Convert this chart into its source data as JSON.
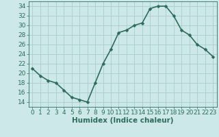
{
  "x": [
    0,
    1,
    2,
    3,
    4,
    5,
    6,
    7,
    8,
    9,
    10,
    11,
    12,
    13,
    14,
    15,
    16,
    17,
    18,
    19,
    20,
    21,
    22,
    23
  ],
  "y": [
    21,
    19.5,
    18.5,
    18,
    16.5,
    15,
    14.5,
    14,
    18,
    22,
    25,
    28.5,
    29,
    30,
    30.5,
    33.5,
    34,
    34,
    32,
    29,
    28,
    26,
    25,
    23.5
  ],
  "line_color": "#2e6b5e",
  "marker": "D",
  "marker_size": 2.5,
  "bg_color": "#cce8e8",
  "grid_color": "#aacccc",
  "xlabel": "Humidex (Indice chaleur)",
  "xlim": [
    -0.5,
    23.5
  ],
  "ylim": [
    13,
    35
  ],
  "yticks": [
    14,
    16,
    18,
    20,
    22,
    24,
    26,
    28,
    30,
    32,
    34
  ],
  "xticks": [
    0,
    1,
    2,
    3,
    4,
    5,
    6,
    7,
    8,
    9,
    10,
    11,
    12,
    13,
    14,
    15,
    16,
    17,
    18,
    19,
    20,
    21,
    22,
    23
  ],
  "tick_color": "#2e6b5e",
  "tick_fontsize": 6.5,
  "xlabel_fontsize": 7.5,
  "line_width": 1.2
}
